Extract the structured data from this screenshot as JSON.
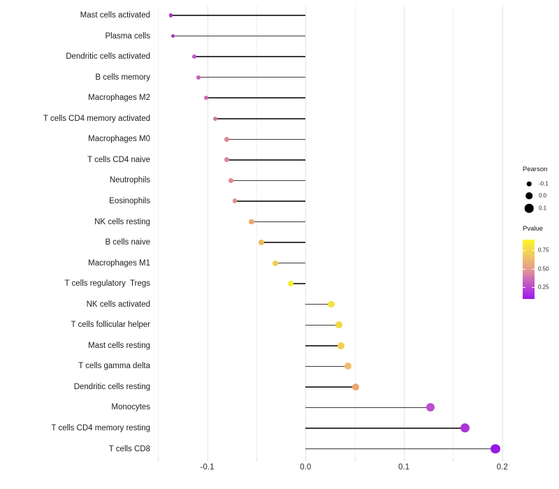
{
  "chart_data": {
    "type": "lollipop",
    "title": "",
    "xlabel": "",
    "ylabel": "",
    "x_ticks": [
      {
        "label": "-0.1",
        "value": -0.1
      },
      {
        "label": "0.0",
        "value": 0.0
      },
      {
        "label": "0.1",
        "value": 0.1
      },
      {
        "label": "0.2",
        "value": 0.2
      }
    ],
    "x_minor_grid_values": [
      -0.15,
      -0.05,
      0.05,
      0.15
    ],
    "xlim": [
      -0.153,
      0.208
    ],
    "rows": [
      {
        "label": "Mast cells activated",
        "pearson": -0.137,
        "color": "#a535c5"
      },
      {
        "label": "Plasma cells",
        "pearson": -0.135,
        "color": "#a537c6"
      },
      {
        "label": "Dendritic cells activated",
        "pearson": -0.113,
        "color": "#c252c4"
      },
      {
        "label": "B cells memory",
        "pearson": -0.109,
        "color": "#c75cba"
      },
      {
        "label": "Macrophages M2",
        "pearson": -0.101,
        "color": "#cd68ad"
      },
      {
        "label": "T cells CD4 memory activated",
        "pearson": -0.092,
        "color": "#d477a1"
      },
      {
        "label": "Macrophages M0",
        "pearson": -0.08,
        "color": "#db8794"
      },
      {
        "label": "T cells CD4 naive",
        "pearson": -0.08,
        "color": "#db8894"
      },
      {
        "label": "Neutrophils",
        "pearson": -0.076,
        "color": "#de8c89"
      },
      {
        "label": "Eosinophils",
        "pearson": -0.072,
        "color": "#e09184"
      },
      {
        "label": "NK cells resting",
        "pearson": -0.055,
        "color": "#eaa967"
      },
      {
        "label": "B cells naive",
        "pearson": -0.045,
        "color": "#eebb59"
      },
      {
        "label": "Macrophages M1",
        "pearson": -0.031,
        "color": "#f2ce4b"
      },
      {
        "label": "T cells regulatory  Tregs",
        "pearson": -0.015,
        "color": "#f8ef2a"
      },
      {
        "label": "NK cells activated",
        "pearson": 0.026,
        "color": "#f5e13c"
      },
      {
        "label": "T cells follicular helper",
        "pearson": 0.034,
        "color": "#f4d749"
      },
      {
        "label": "Mast cells resting",
        "pearson": 0.036,
        "color": "#f3cf53"
      },
      {
        "label": "T cells gamma delta",
        "pearson": 0.043,
        "color": "#f0bd6c"
      },
      {
        "label": "Dendritic cells resting",
        "pearson": 0.051,
        "color": "#eda76d"
      },
      {
        "label": "Monocytes",
        "pearson": 0.127,
        "color": "#bc4ecf"
      },
      {
        "label": "T cells CD4 memory resting",
        "pearson": 0.162,
        "color": "#a935da"
      },
      {
        "label": "T cells CD8",
        "pearson": 0.193,
        "color": "#9619e6"
      }
    ],
    "legend_size": {
      "title": "Pearson",
      "items": [
        {
          "label": "-0.1",
          "value": -0.1
        },
        {
          "label": "0.0",
          "value": 0.0
        },
        {
          "label": "0.1",
          "value": 0.1
        }
      ],
      "dot_color": "#000000"
    },
    "legend_color": {
      "title": "Pvalue",
      "ticks": [
        "0.75",
        "0.50",
        "0.25"
      ],
      "gradient_bottom_to_top": [
        "#9e17f0",
        "#c45fc2",
        "#e59a92",
        "#f3c95e",
        "#fbf62a"
      ]
    }
  },
  "colors": {
    "background": "#ffffff",
    "stem": "#3a3a3a",
    "grid_major": "#e4e4e4",
    "grid_minor": "#f1f1f1",
    "axis_tick": "#d9d9d9",
    "axis_text": "#2b2b2b"
  }
}
